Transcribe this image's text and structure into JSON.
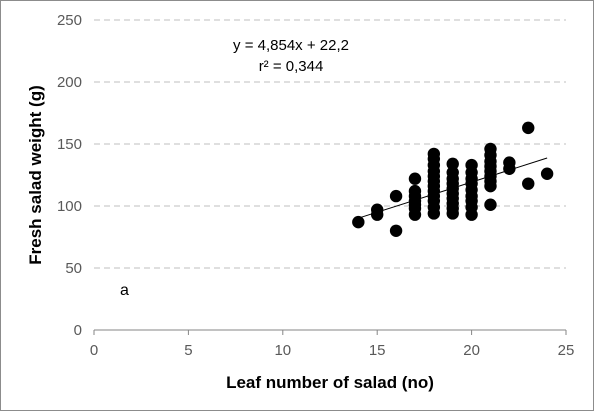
{
  "chart_data": {
    "type": "scatter",
    "title": "",
    "xlabel": "Leaf number of salad (no)",
    "ylabel": "Fresh salad weight (g)",
    "xlim": [
      0,
      25
    ],
    "ylim": [
      0,
      250
    ],
    "xticks": [
      "0",
      "5",
      "10",
      "15",
      "20",
      "25"
    ],
    "yticks": [
      "0",
      "50",
      "100",
      "150",
      "200",
      "250"
    ],
    "grid": "horizontal-dashed",
    "legend": "none",
    "panel_label": "a",
    "equation": "y = 4,854x + 22,2",
    "r_squared": "r² = 0,344",
    "trendline": {
      "slope": 4.854,
      "intercept": 22.2,
      "x_range": [
        14,
        24
      ]
    },
    "marker_color": "#000000",
    "points": [
      {
        "x": 14,
        "y": 87
      },
      {
        "x": 15,
        "y": 93
      },
      {
        "x": 15,
        "y": 97
      },
      {
        "x": 16,
        "y": 80
      },
      {
        "x": 16,
        "y": 108
      },
      {
        "x": 17,
        "y": 93
      },
      {
        "x": 17,
        "y": 98
      },
      {
        "x": 17,
        "y": 101
      },
      {
        "x": 17,
        "y": 104
      },
      {
        "x": 17,
        "y": 108
      },
      {
        "x": 17,
        "y": 112
      },
      {
        "x": 17,
        "y": 122
      },
      {
        "x": 18,
        "y": 94
      },
      {
        "x": 18,
        "y": 99
      },
      {
        "x": 18,
        "y": 104
      },
      {
        "x": 18,
        "y": 108
      },
      {
        "x": 18,
        "y": 112
      },
      {
        "x": 18,
        "y": 116
      },
      {
        "x": 18,
        "y": 120
      },
      {
        "x": 18,
        "y": 124
      },
      {
        "x": 18,
        "y": 128
      },
      {
        "x": 18,
        "y": 133
      },
      {
        "x": 18,
        "y": 138
      },
      {
        "x": 18,
        "y": 142
      },
      {
        "x": 19,
        "y": 94
      },
      {
        "x": 19,
        "y": 98
      },
      {
        "x": 19,
        "y": 102
      },
      {
        "x": 19,
        "y": 106
      },
      {
        "x": 19,
        "y": 110
      },
      {
        "x": 19,
        "y": 114
      },
      {
        "x": 19,
        "y": 118
      },
      {
        "x": 19,
        "y": 122
      },
      {
        "x": 19,
        "y": 127
      },
      {
        "x": 19,
        "y": 134
      },
      {
        "x": 20,
        "y": 93
      },
      {
        "x": 20,
        "y": 99
      },
      {
        "x": 20,
        "y": 104
      },
      {
        "x": 20,
        "y": 108
      },
      {
        "x": 20,
        "y": 113
      },
      {
        "x": 20,
        "y": 118
      },
      {
        "x": 20,
        "y": 122
      },
      {
        "x": 20,
        "y": 127
      },
      {
        "x": 20,
        "y": 133
      },
      {
        "x": 21,
        "y": 101
      },
      {
        "x": 21,
        "y": 116
      },
      {
        "x": 21,
        "y": 120
      },
      {
        "x": 21,
        "y": 124
      },
      {
        "x": 21,
        "y": 128
      },
      {
        "x": 21,
        "y": 132
      },
      {
        "x": 21,
        "y": 136
      },
      {
        "x": 21,
        "y": 141
      },
      {
        "x": 21,
        "y": 146
      },
      {
        "x": 22,
        "y": 130
      },
      {
        "x": 22,
        "y": 135
      },
      {
        "x": 23,
        "y": 118
      },
      {
        "x": 23,
        "y": 163
      },
      {
        "x": 24,
        "y": 126
      }
    ]
  }
}
